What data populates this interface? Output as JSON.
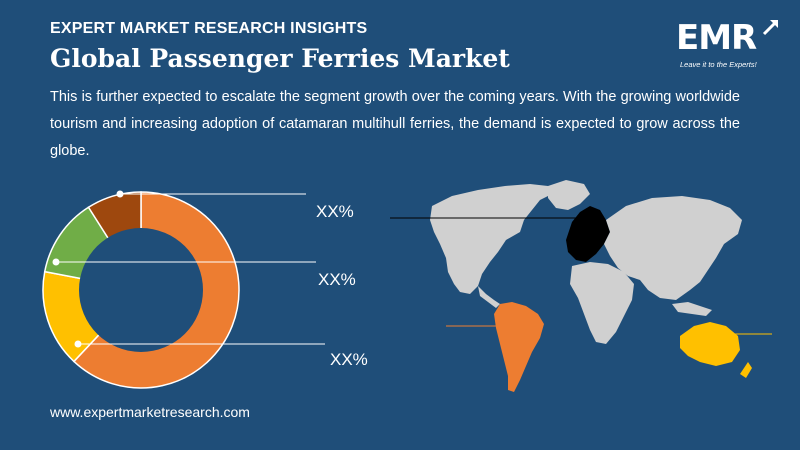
{
  "header": {
    "kicker": "EXPERT MARKET RESEARCH INSIGHTS",
    "title": "Global Passenger Ferries Market",
    "description": "This is further expected to escalate the segment growth over the coming years. With the growing worldwide tourism and increasing adoption of catamaran multihull ferries, the demand is expected to grow across the globe."
  },
  "logo": {
    "text": "EMR",
    "tagline": "Leave it to the Experts!"
  },
  "chart_data": {
    "type": "pie",
    "series": [
      {
        "value": 62,
        "color": "#ed7d31"
      },
      {
        "value": 16,
        "color": "#ffc000"
      },
      {
        "value": 13,
        "color": "#70ad47"
      },
      {
        "value": 9,
        "color": "#9e480e"
      }
    ],
    "labels": [
      "XX%",
      "XX%",
      "XX%"
    ]
  },
  "map": {
    "land_color": "#d0d0d0",
    "highlight_europe": "#000000",
    "highlight_south_america": "#ed7d31",
    "highlight_oceania": "#ffc000"
  },
  "footer": {
    "url": "www.expertmarketresearch.com"
  }
}
